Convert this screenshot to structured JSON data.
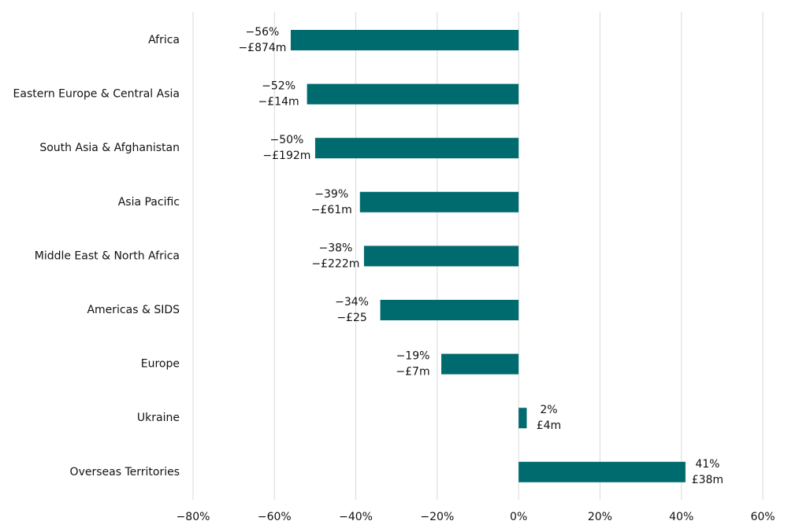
{
  "chart_data": {
    "type": "hbar",
    "categories": [
      "Africa",
      "Eastern Europe & Central Asia",
      "South Asia & Afghanistan",
      "Asia Pacific",
      "Middle East & North Africa",
      "Americas & SIDS",
      "Europe",
      "Ukraine",
      "Overseas Territories"
    ],
    "values": [
      -56,
      -52,
      -50,
      -39,
      -38,
      -34,
      -19,
      2,
      41
    ],
    "value_labels": [
      "−56%",
      "−52%",
      "−50%",
      "−39%",
      "−38%",
      "−34%",
      "−19%",
      "2%",
      "41%"
    ],
    "change_labels": [
      "−£874m",
      "−£14m",
      "−£192m",
      "−£61m",
      "−£222m",
      "−£25",
      "−£7m",
      "£4m",
      "£38m"
    ],
    "color": "#006b6e",
    "xlim": [
      -80,
      60
    ],
    "xticks": [
      {
        "value": -80,
        "label": "−80%"
      },
      {
        "value": -60,
        "label": "−60%"
      },
      {
        "value": -40,
        "label": "−40%"
      },
      {
        "value": -20,
        "label": "−20%"
      },
      {
        "value": 0,
        "label": "0%"
      },
      {
        "value": 20,
        "label": "20%"
      },
      {
        "value": 40,
        "label": "40%"
      },
      {
        "value": 60,
        "label": "60%"
      }
    ],
    "grid": true
  }
}
